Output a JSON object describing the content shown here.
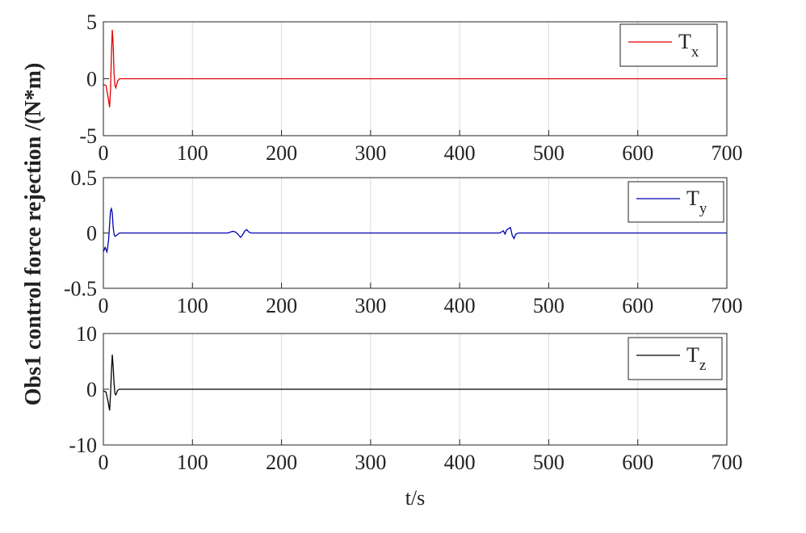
{
  "ylabel": "Obs1 control force rejection /(N*m)",
  "xlabel": "t/s",
  "chart_data": [
    {
      "type": "line",
      "x": [
        0,
        3,
        5,
        7,
        8,
        9,
        10,
        11,
        12,
        13,
        14,
        16,
        18,
        700
      ],
      "series": [
        {
          "name": "Tx",
          "color": "#e00000",
          "values": [
            -0.5,
            -0.6,
            -1.5,
            -2.5,
            -1,
            2,
            4.3,
            3,
            0.5,
            -0.6,
            -0.8,
            -0.2,
            0,
            0
          ]
        }
      ],
      "xlim": [
        0,
        700
      ],
      "ylim": [
        -5,
        5
      ],
      "xticks": [
        0,
        100,
        200,
        300,
        400,
        500,
        600,
        700
      ],
      "yticks": [
        -5,
        0,
        5
      ],
      "grid": true,
      "legend": "upper right"
    },
    {
      "type": "line",
      "x": [
        0,
        2,
        4,
        5,
        6,
        7,
        8,
        9,
        10,
        11,
        12,
        13,
        15,
        18,
        140,
        145,
        148,
        151,
        154,
        156,
        159,
        161,
        163,
        166,
        445,
        449,
        451,
        453,
        457,
        459,
        461,
        463,
        466,
        700
      ],
      "series": [
        {
          "name": "Ty",
          "color": "#0000b0",
          "values": [
            -0.17,
            -0.13,
            -0.17,
            -0.12,
            -0.05,
            0.08,
            0.2,
            0.22,
            0.18,
            0.05,
            -0.01,
            -0.03,
            -0.02,
            0,
            0,
            0.015,
            0.01,
            -0.01,
            -0.04,
            -0.02,
            0.02,
            0.03,
            0.01,
            0,
            0,
            0.02,
            -0.01,
            0.03,
            0.05,
            -0.02,
            -0.05,
            -0.01,
            0,
            0
          ]
        }
      ],
      "xlim": [
        0,
        700
      ],
      "ylim": [
        -0.5,
        0.5
      ],
      "xticks": [
        0,
        100,
        200,
        300,
        400,
        500,
        600,
        700
      ],
      "yticks": [
        -0.5,
        0,
        0.5
      ],
      "grid": true,
      "legend": "upper right"
    },
    {
      "type": "line",
      "x": [
        0,
        3,
        5,
        7,
        8,
        9,
        10,
        11,
        12,
        13,
        14,
        16,
        18,
        700
      ],
      "series": [
        {
          "name": "Tz",
          "color": "#000000",
          "values": [
            -0.3,
            -0.5,
            -2,
            -3.8,
            -1,
            3,
            6.2,
            4,
            1,
            -0.8,
            -1,
            -0.2,
            0,
            0
          ]
        }
      ],
      "xlim": [
        0,
        700
      ],
      "ylim": [
        -10,
        10
      ],
      "xticks": [
        0,
        100,
        200,
        300,
        400,
        500,
        600,
        700
      ],
      "yticks": [
        -10,
        0,
        10
      ],
      "grid": true,
      "legend": "upper right"
    }
  ]
}
